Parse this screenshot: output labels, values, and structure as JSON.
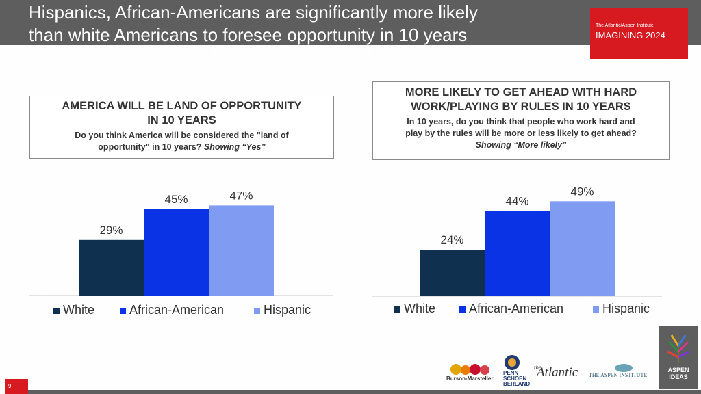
{
  "slide": {
    "title_line1": "Hispanics, African-Americans are significantly more likely",
    "title_line2": "than white Americans to foresee opportunity in 10 years",
    "brand_small": "The Atlantic/Aspen Institute",
    "brand_big": "IMAGINING 2024",
    "page_number": "9"
  },
  "logos": {
    "burson": "Burson-Marsteller",
    "penn1": "PENN",
    "penn2": "SCHOEN",
    "penn3": "BERLAND",
    "atlantic_the": "the",
    "atlantic": "Atlantic",
    "aspen_institute": "THE ASPEN INSTITUTE",
    "aspen_ideas1": "ASPEN",
    "aspen_ideas2": "IDEAS"
  },
  "colors": {
    "white": "#10304f",
    "african_american": "#0a33e6",
    "hispanic": "#7f9cf2",
    "brand_red": "#d71920",
    "header_grey": "#5e5e5e"
  },
  "chart_data": [
    {
      "type": "bar",
      "title_line1": "AMERICA WILL BE LAND OF OPPORTUNITY",
      "title_line2": "IN 10 YEARS",
      "question_line1": "Do you think America will be considered the \"land of",
      "question_line2": "opportunity\" in 10 years?",
      "showing": "Showing “Yes”",
      "series": [
        {
          "name": "White",
          "value": 29,
          "label": "29%"
        },
        {
          "name": "African-American",
          "value": 45,
          "label": "45%"
        },
        {
          "name": "Hispanic",
          "value": 47,
          "label": "47%"
        }
      ],
      "ylim": [
        0,
        50
      ],
      "legend": "bottom"
    },
    {
      "type": "bar",
      "title_line1": "MORE LIKELY TO GET AHEAD WITH HARD",
      "title_line2": "WORK/PLAYING BY RULES IN 10 YEARS",
      "question_line1": "In 10 years, do you think that people who work hard and",
      "question_line2": "play by the rules will be more or less likely to get ahead?",
      "showing": "Showing “More likely”",
      "series": [
        {
          "name": "White",
          "value": 24,
          "label": "24%"
        },
        {
          "name": "African-American",
          "value": 44,
          "label": "44%"
        },
        {
          "name": "Hispanic",
          "value": 49,
          "label": "49%"
        }
      ],
      "ylim": [
        0,
        50
      ],
      "legend": "bottom"
    }
  ]
}
